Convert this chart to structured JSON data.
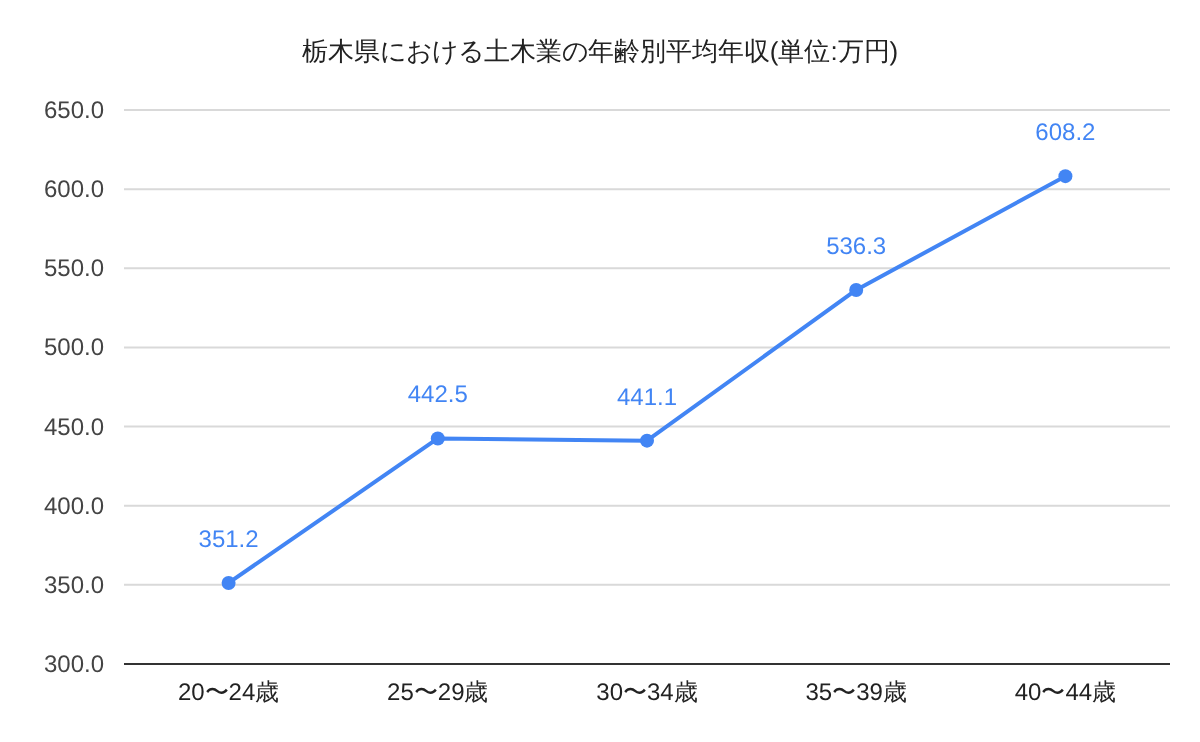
{
  "chart_data": {
    "type": "line",
    "title": "栃木県における土木業の年齢別平均年収(単位:万円)",
    "categories": [
      "20〜24歳",
      "25〜29歳",
      "30〜34歳",
      "35〜39歳",
      "40〜44歳"
    ],
    "series": [
      {
        "color": "#4285f4",
        "values": [
          351.2,
          442.5,
          441.1,
          536.3,
          608.2
        ]
      }
    ],
    "ylim": [
      300,
      650
    ],
    "yticks": [
      {
        "value": 300,
        "label": "300.0"
      },
      {
        "value": 350,
        "label": "350.0"
      },
      {
        "value": 400,
        "label": "400.0"
      },
      {
        "value": 450,
        "label": "450.0"
      },
      {
        "value": 500,
        "label": "500.0"
      },
      {
        "value": 550,
        "label": "550.0"
      },
      {
        "value": 600,
        "label": "600.0"
      },
      {
        "value": 650,
        "label": "650.0"
      }
    ],
    "grid": "y",
    "marker": "circle",
    "line_style": "solid",
    "data_labels": true
  }
}
